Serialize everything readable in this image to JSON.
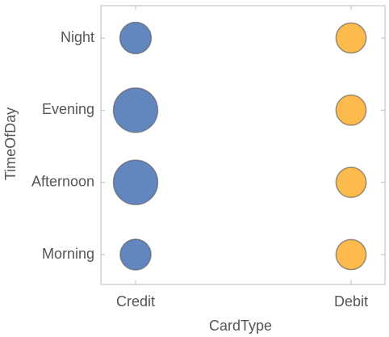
{
  "chart_data": {
    "type": "bubble",
    "x_label": "CardType",
    "y_label": "TimeOfDay",
    "y_categories": [
      "Morning",
      "Afternoon",
      "Evening",
      "Night"
    ],
    "series": [
      {
        "name": "Credit",
        "color": "#5a7fba",
        "values": [
          48,
          100,
          100,
          50
        ]
      },
      {
        "name": "Debit",
        "color": "#fdb643",
        "values": [
          46,
          46,
          46,
          46
        ]
      }
    ]
  }
}
